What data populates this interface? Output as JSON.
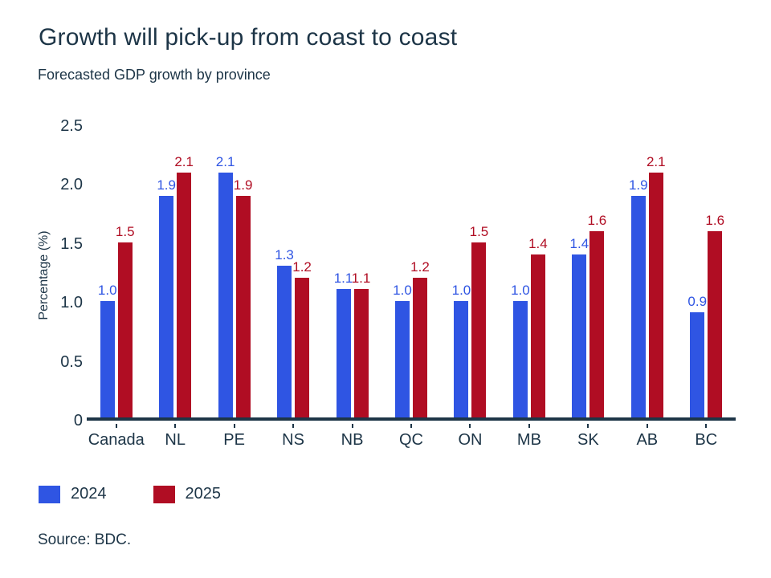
{
  "header": {
    "title": "Growth will pick-up from coast to coast",
    "subtitle": "Forecasted GDP growth by province"
  },
  "chart_data": {
    "type": "bar",
    "categories": [
      "Canada",
      "NL",
      "PE",
      "NS",
      "NB",
      "QC",
      "ON",
      "MB",
      "SK",
      "AB",
      "BC"
    ],
    "series": [
      {
        "name": "2024",
        "color": "#2f55e3",
        "values": [
          1.0,
          1.9,
          2.1,
          1.3,
          1.1,
          1.0,
          1.0,
          1.0,
          1.4,
          1.9,
          0.9
        ]
      },
      {
        "name": "2025",
        "color": "#b00d23",
        "values": [
          1.5,
          2.1,
          1.9,
          1.2,
          1.1,
          1.2,
          1.5,
          1.4,
          1.6,
          2.1,
          1.6
        ]
      }
    ],
    "ylabel": "Percentage (%)",
    "yticks": [
      2.5,
      2.0,
      1.5,
      1.0,
      0.5,
      0
    ],
    "ytick_labels": [
      "2.5",
      "2.0",
      "1.5",
      "1.0",
      "0.5",
      "0"
    ],
    "ylim": [
      0,
      2.5
    ],
    "grid": false,
    "value_labels": true,
    "legend_position": "bottom"
  },
  "legend": {
    "items": [
      {
        "label": "2024",
        "color": "#2f55e3"
      },
      {
        "label": "2025",
        "color": "#b00d23"
      }
    ]
  },
  "source": "Source: BDC.",
  "colors": {
    "text": "#1d3547",
    "axis": "#1d3547",
    "series_2024": "#2f55e3",
    "series_2025": "#b00d23"
  }
}
